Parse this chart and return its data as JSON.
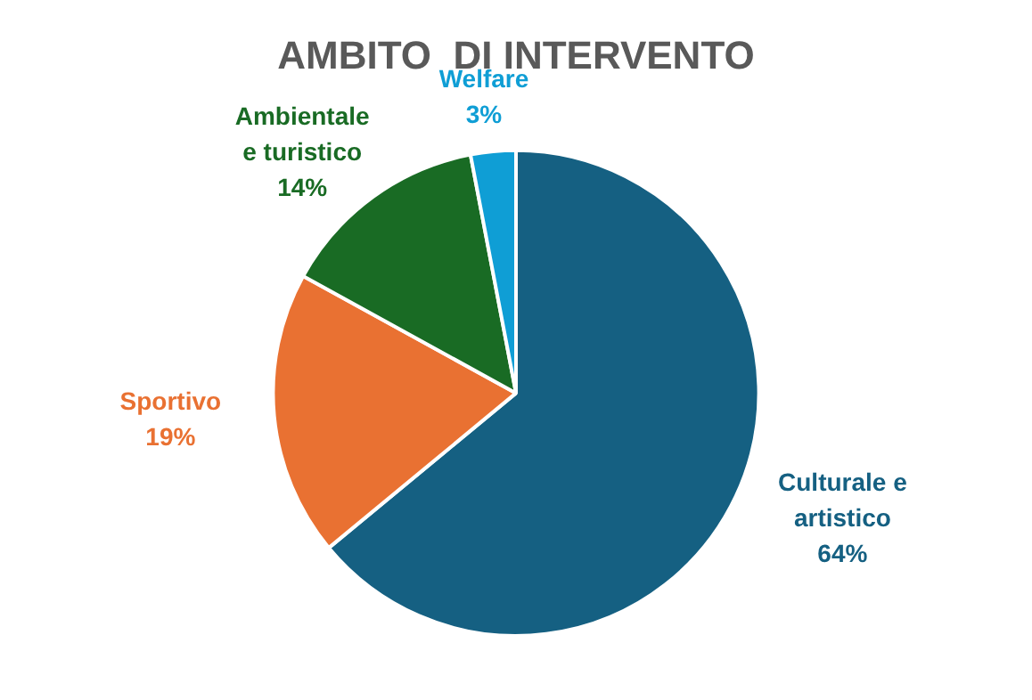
{
  "chart_data": {
    "type": "pie",
    "title": "AMBITO  DI INTERVENTO",
    "categories": [
      "Culturale e artistico",
      "Sportivo",
      "Ambientale e turistico",
      "Welfare"
    ],
    "values": [
      64,
      19,
      14,
      3
    ],
    "colors": [
      "#156082",
      "#e97132",
      "#196b24",
      "#0f9ed5"
    ],
    "value_labels": [
      "64%",
      "19%",
      "14%",
      "3%"
    ],
    "legend": false
  }
}
